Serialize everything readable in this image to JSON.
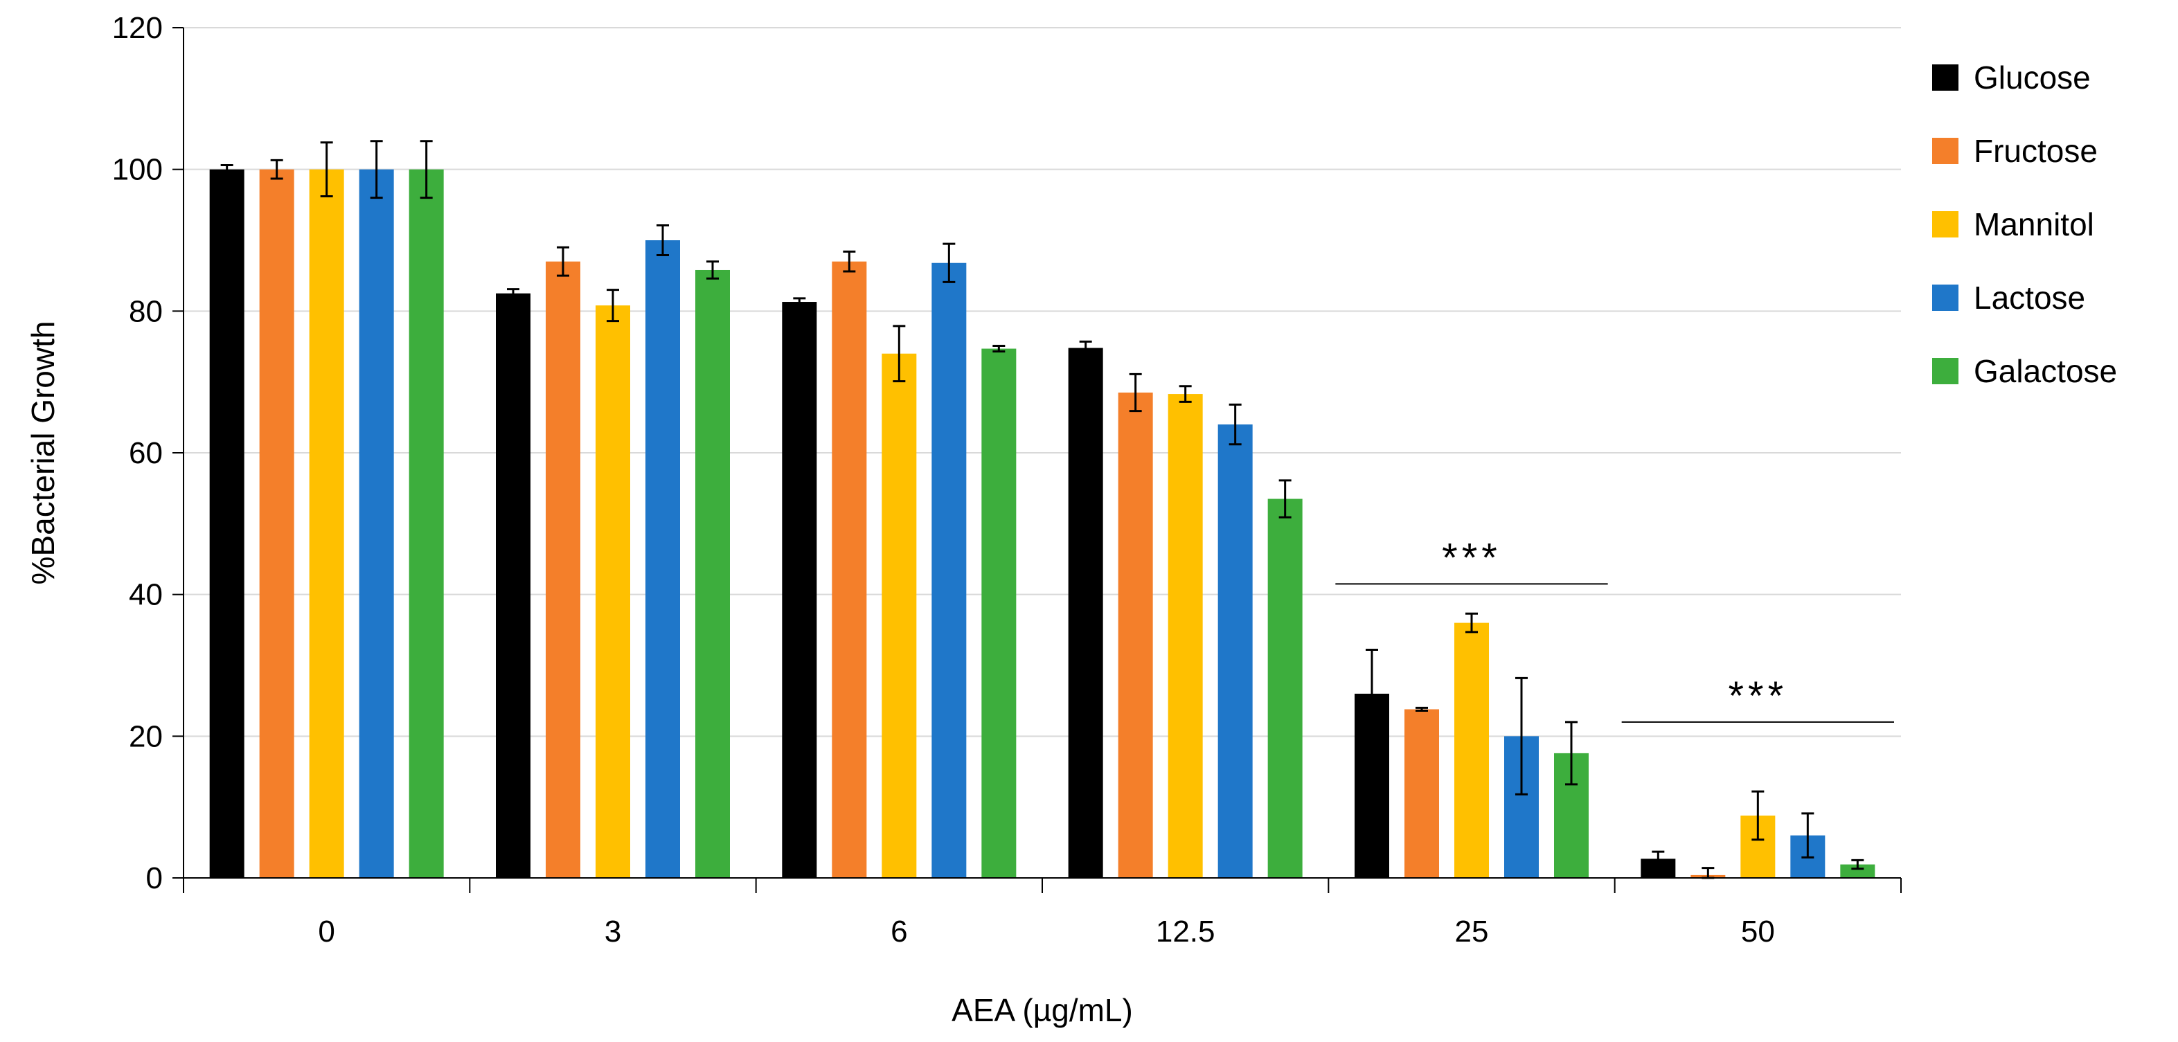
{
  "chart_data": {
    "type": "bar",
    "title": "",
    "xlabel": "AEA (µg/mL)",
    "ylabel": "%Bacterial Growth",
    "ylim": [
      0,
      120
    ],
    "yticks": [
      0,
      20,
      40,
      60,
      80,
      100,
      120
    ],
    "grid": true,
    "legend_position": "right",
    "categories": [
      "0",
      "3",
      "6",
      "12.5",
      "25",
      "50"
    ],
    "series": [
      {
        "name": "Glucose",
        "color": "#000000",
        "values": [
          100,
          82.5,
          81.3,
          74.8,
          26.0,
          2.7
        ],
        "errors": [
          0.6,
          0.6,
          0.5,
          0.9,
          6.2,
          1.0
        ]
      },
      {
        "name": "Fructose",
        "color": "#F47F2A",
        "values": [
          100,
          87.0,
          87.0,
          68.5,
          23.8,
          0.4
        ],
        "errors": [
          1.3,
          2.0,
          1.4,
          2.6,
          0.2,
          1.0
        ]
      },
      {
        "name": "Mannitol",
        "color": "#FFC000",
        "values": [
          100,
          80.8,
          74.0,
          68.3,
          36.0,
          8.8
        ],
        "errors": [
          3.8,
          2.2,
          3.9,
          1.1,
          1.3,
          3.4
        ]
      },
      {
        "name": "Lactose",
        "color": "#1F77C9",
        "values": [
          100,
          90.0,
          86.8,
          64.0,
          20.0,
          6.0
        ],
        "errors": [
          4.0,
          2.1,
          2.7,
          2.8,
          8.2,
          3.1
        ]
      },
      {
        "name": "Galactose",
        "color": "#3DAE3D",
        "values": [
          100,
          85.8,
          74.7,
          53.5,
          17.6,
          1.9
        ],
        "errors": [
          4.0,
          1.2,
          0.4,
          2.6,
          4.4,
          0.6
        ]
      }
    ],
    "annotations": [
      {
        "text": "***",
        "category": "25",
        "y": 41.5
      },
      {
        "text": "***",
        "category": "50",
        "y": 22.0
      }
    ]
  }
}
